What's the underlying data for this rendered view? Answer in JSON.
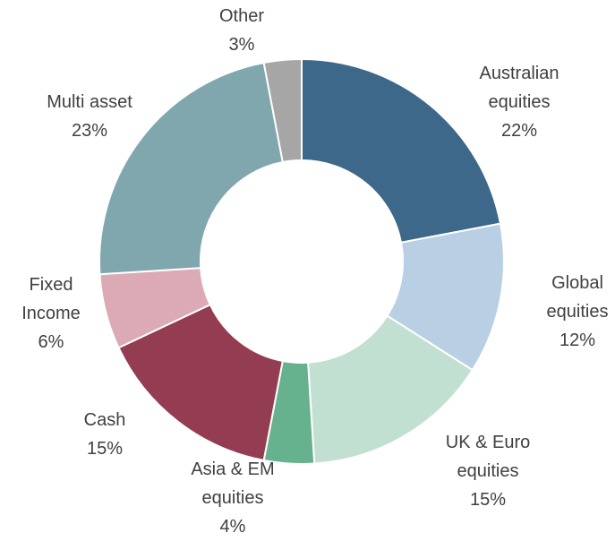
{
  "chart_data": {
    "type": "donut",
    "categories": [
      "Australian equities",
      "Global equities",
      "UK & Euro equities",
      "Asia & EM equities",
      "Cash",
      "Fixed Income",
      "Multi asset",
      "Other"
    ],
    "values": [
      22,
      12,
      15,
      4,
      15,
      6,
      23,
      3
    ],
    "value_labels": [
      "22%",
      "12%",
      "15%",
      "4%",
      "15%",
      "6%",
      "23%",
      "3%"
    ],
    "colors": [
      "#3d6889",
      "#b9cfe4",
      "#c2e0d1",
      "#66b28e",
      "#943c52",
      "#dcaab5",
      "#7fa7ad",
      "#a6a6a6"
    ]
  }
}
